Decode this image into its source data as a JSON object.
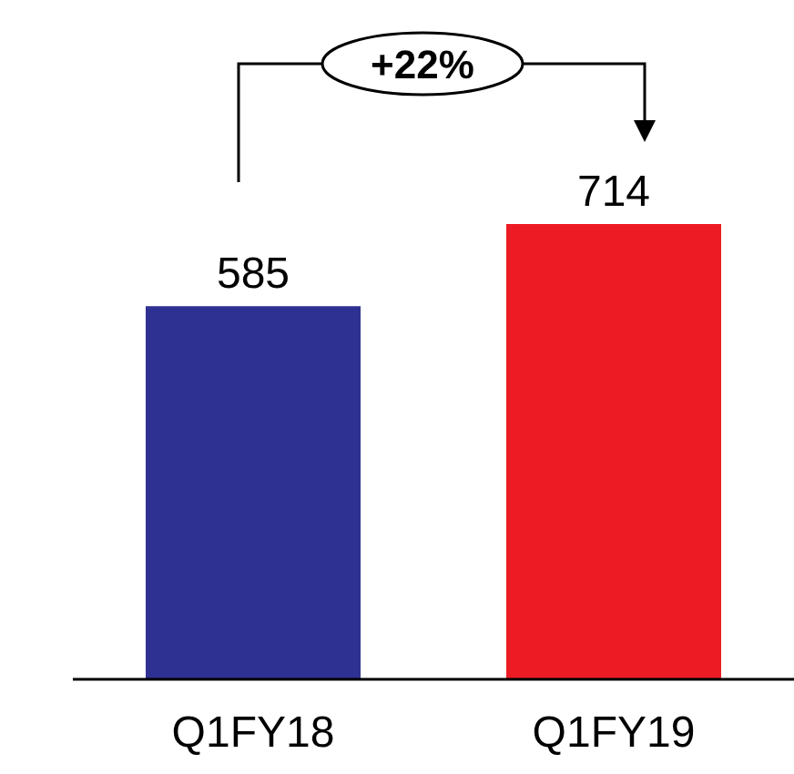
{
  "chart_data": {
    "type": "bar",
    "categories": [
      "Q1FY18",
      "Q1FY19"
    ],
    "values": [
      585,
      714
    ],
    "colors": [
      "#2e3192",
      "#ed1c24"
    ],
    "data_labels": true,
    "annotations": [
      "+22%"
    ]
  }
}
